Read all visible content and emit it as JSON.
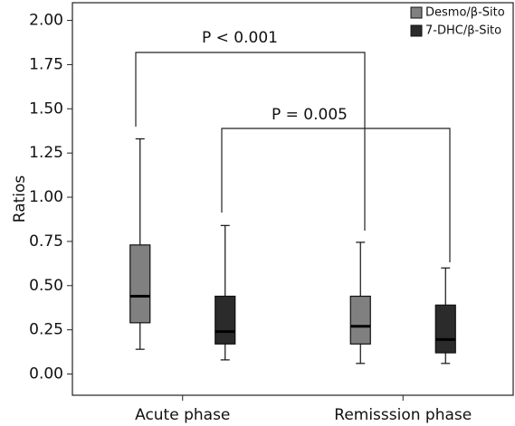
{
  "chart_data": {
    "type": "box",
    "ylabel": "Ratios",
    "categories": [
      "Acute phase",
      "Remisssion phase"
    ],
    "series": [
      {
        "name": "Desmo/β-Sito",
        "color": "#808080",
        "values": [
          {
            "min": 0.14,
            "q1": 0.29,
            "median": 0.44,
            "q3": 0.73,
            "max": 1.33
          },
          {
            "min": 0.06,
            "q1": 0.17,
            "median": 0.27,
            "q3": 0.44,
            "max": 0.745
          }
        ]
      },
      {
        "name": "7-DHC/β-Sito",
        "color": "#2b2b2b",
        "values": [
          {
            "min": 0.08,
            "q1": 0.17,
            "median": 0.24,
            "q3": 0.44,
            "max": 0.84
          },
          {
            "min": 0.06,
            "q1": 0.12,
            "median": 0.195,
            "q3": 0.39,
            "max": 0.6
          }
        ]
      }
    ],
    "ylim": [
      -0.12,
      2.1
    ],
    "yticks": [
      {
        "value": 0,
        "label": "0.00"
      },
      {
        "value": 0.25,
        "label": "0.25"
      },
      {
        "value": 0.5,
        "label": "0.50"
      },
      {
        "value": 0.75,
        "label": "0.75"
      },
      {
        "value": 1,
        "label": "1.00"
      },
      {
        "value": 1.25,
        "label": "1.25"
      },
      {
        "value": 1.5,
        "label": "1.50"
      },
      {
        "value": 1.75,
        "label": "1.75"
      },
      {
        "value": 2,
        "label": "2.00"
      }
    ],
    "annotations": [
      "P < 0.001",
      "P = 0.005"
    ],
    "legend": "upper right"
  }
}
